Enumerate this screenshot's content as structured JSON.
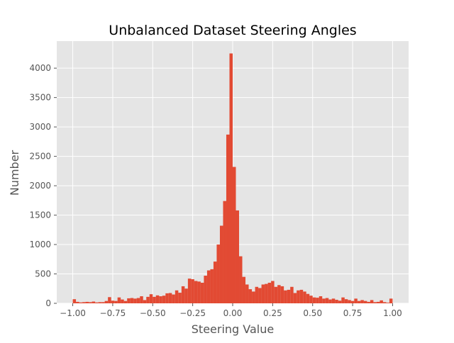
{
  "chart_data": {
    "type": "bar",
    "style": "histogram",
    "title": "Unbalanced Dataset Steering Angles",
    "xlabel": "Steering Value",
    "ylabel": "Number",
    "xlim": [
      -1.1,
      1.1
    ],
    "ylim": [
      0,
      4460
    ],
    "grid": true,
    "legend": "none",
    "bin_range": [
      -1.0,
      1.0
    ],
    "bin_count": 100,
    "x_ticks": [
      {
        "value": -1.0,
        "label": "−1.00"
      },
      {
        "value": -0.75,
        "label": "−0.75"
      },
      {
        "value": -0.5,
        "label": "−0.50"
      },
      {
        "value": -0.25,
        "label": "−0.25"
      },
      {
        "value": 0.0,
        "label": "0.00"
      },
      {
        "value": 0.25,
        "label": "0.25"
      },
      {
        "value": 0.5,
        "label": "0.50"
      },
      {
        "value": 0.75,
        "label": "0.75"
      },
      {
        "value": 1.0,
        "label": "1.00"
      }
    ],
    "y_ticks": [
      {
        "value": 0,
        "label": "0"
      },
      {
        "value": 500,
        "label": "500"
      },
      {
        "value": 1000,
        "label": "1000"
      },
      {
        "value": 1500,
        "label": "1500"
      },
      {
        "value": 2000,
        "label": "2000"
      },
      {
        "value": 2500,
        "label": "2500"
      },
      {
        "value": 3000,
        "label": "3000"
      },
      {
        "value": 3500,
        "label": "3500"
      },
      {
        "value": 4000,
        "label": "4000"
      }
    ],
    "values": [
      70,
      25,
      15,
      20,
      25,
      20,
      30,
      15,
      20,
      20,
      40,
      105,
      45,
      40,
      100,
      65,
      40,
      85,
      90,
      80,
      90,
      120,
      55,
      110,
      155,
      110,
      135,
      120,
      130,
      170,
      175,
      150,
      220,
      180,
      290,
      250,
      420,
      410,
      380,
      370,
      350,
      470,
      560,
      580,
      710,
      1000,
      1320,
      1740,
      2870,
      4250,
      2320,
      1580,
      800,
      450,
      320,
      240,
      200,
      280,
      260,
      320,
      330,
      350,
      380,
      280,
      310,
      290,
      220,
      230,
      280,
      175,
      220,
      230,
      200,
      160,
      130,
      100,
      95,
      120,
      80,
      90,
      65,
      80,
      60,
      45,
      100,
      70,
      55,
      40,
      80,
      40,
      55,
      40,
      25,
      55,
      20,
      25,
      50,
      20,
      10,
      80
    ],
    "colors": {
      "bar": "#E24A33",
      "plot_background": "#E5E5E5",
      "grid": "#FFFFFF",
      "figure_background": "#FFFFFF",
      "tick_text": "#555555",
      "title_text": "#000000"
    }
  }
}
